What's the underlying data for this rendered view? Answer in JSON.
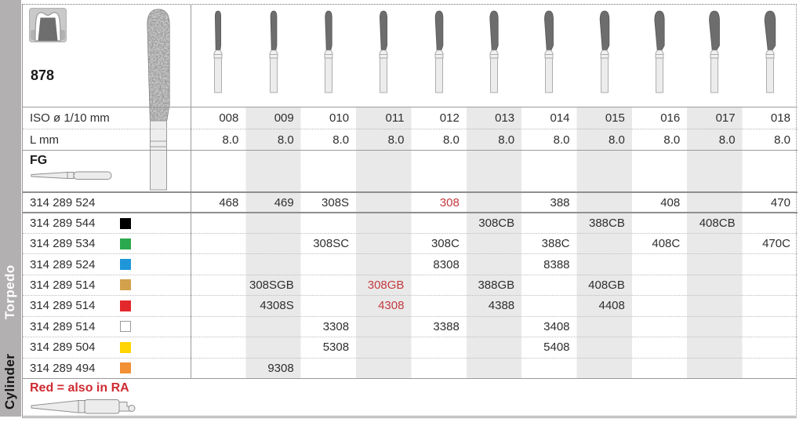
{
  "page": {
    "family_number": "878",
    "iso_label": "ISO ø 1/10 mm",
    "l_label": "L mm",
    "grip_label": "FG",
    "note": "Red = also in RA"
  },
  "sidebar": {
    "section_top": "Torpedo",
    "section_bottom": "Cylinder"
  },
  "columns": [
    "008",
    "009",
    "010",
    "011",
    "012",
    "013",
    "014",
    "015",
    "016",
    "017",
    "018"
  ],
  "l_values": [
    "8.0",
    "8.0",
    "8.0",
    "8.0",
    "8.0",
    "8.0",
    "8.0",
    "8.0",
    "8.0",
    "8.0",
    "8.0"
  ],
  "order_rows": [
    {
      "code": "314 289 524",
      "swatch": null,
      "cells": [
        "468",
        "469",
        "308S",
        "",
        {
          "t": "308",
          "red": true
        },
        "",
        "388",
        "",
        "408",
        "",
        "470"
      ]
    },
    {
      "code": "314 289 544",
      "swatch": {
        "name": "black",
        "hex": "#000000"
      },
      "cells": [
        "",
        "",
        "",
        "",
        "",
        "308CB",
        "",
        "388CB",
        "",
        "408CB",
        ""
      ]
    },
    {
      "code": "314 289 534",
      "swatch": {
        "name": "green",
        "hex": "#2ba94d"
      },
      "cells": [
        "",
        "",
        "308SC",
        "",
        "308C",
        "",
        "388C",
        "",
        "408C",
        "",
        "470C"
      ]
    },
    {
      "code": "314 289 524",
      "swatch": {
        "name": "blue",
        "hex": "#2096da"
      },
      "cells": [
        "",
        "",
        "",
        "",
        "8308",
        "",
        "8388",
        "",
        "",
        "",
        ""
      ]
    },
    {
      "code": "314 289 514",
      "swatch": {
        "name": "gold",
        "hex": "#d2a14b"
      },
      "cells": [
        "",
        "308SGB",
        "",
        {
          "t": "308GB",
          "red": true
        },
        "",
        "388GB",
        "",
        "408GB",
        "",
        "",
        ""
      ]
    },
    {
      "code": "314 289 514",
      "swatch": {
        "name": "red",
        "hex": "#e3282b"
      },
      "cells": [
        "",
        "4308S",
        "",
        {
          "t": "4308",
          "red": true
        },
        "",
        "4388",
        "",
        "4408",
        "",
        "",
        ""
      ]
    },
    {
      "code": "314 289 514",
      "swatch": {
        "name": "white",
        "hex": "#ffffff"
      },
      "cells": [
        "",
        "",
        "3308",
        "",
        "3388",
        "",
        "3408",
        "",
        "",
        "",
        ""
      ]
    },
    {
      "code": "314 289 504",
      "swatch": {
        "name": "yellow",
        "hex": "#ffd402"
      },
      "cells": [
        "",
        "",
        "5308",
        "",
        "",
        "",
        "5408",
        "",
        "",
        "",
        ""
      ]
    },
    {
      "code": "314 289 494",
      "swatch": {
        "name": "orange",
        "hex": "#f19035"
      },
      "cells": [
        "",
        "9308",
        "",
        "",
        "",
        "",
        "",
        "",
        "",
        "",
        ""
      ]
    }
  ],
  "colors": {
    "red_code_text": "#c23a3f",
    "note_text": "#cf2b31",
    "column_stripe": "#e9e9e9",
    "sidebar_bg": "#b2b0b0"
  }
}
